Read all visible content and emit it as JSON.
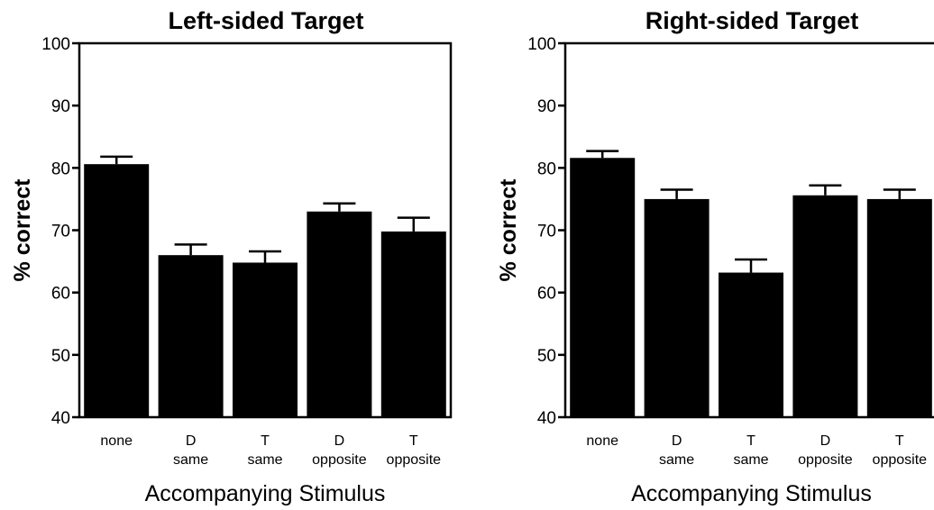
{
  "chart_data": [
    {
      "type": "bar",
      "title": "Left-sided Target",
      "xlabel": "Accompanying Stimulus",
      "ylabel": "% correct",
      "ylim": [
        40,
        100
      ],
      "yticks": [
        "40",
        "50",
        "60",
        "70",
        "80",
        "90",
        "100"
      ],
      "categories": [
        [
          "none"
        ],
        [
          "D",
          "same"
        ],
        [
          "T",
          "same"
        ],
        [
          "D",
          "opposite"
        ],
        [
          "T",
          "opposite"
        ]
      ],
      "values": [
        80.6,
        66.0,
        64.8,
        73.0,
        69.8
      ],
      "errors": [
        1.2,
        1.7,
        1.8,
        1.3,
        2.2
      ]
    },
    {
      "type": "bar",
      "title": "Right-sided Target",
      "xlabel": "Accompanying Stimulus",
      "ylabel": "% correct",
      "ylim": [
        40,
        100
      ],
      "yticks": [
        "40",
        "50",
        "60",
        "70",
        "80",
        "90",
        "100"
      ],
      "categories": [
        [
          "none"
        ],
        [
          "D",
          "same"
        ],
        [
          "T",
          "same"
        ],
        [
          "D",
          "opposite"
        ],
        [
          "T",
          "opposite"
        ]
      ],
      "values": [
        81.6,
        75.0,
        63.2,
        75.6,
        75.0
      ],
      "errors": [
        1.1,
        1.5,
        2.1,
        1.6,
        1.5
      ]
    }
  ]
}
